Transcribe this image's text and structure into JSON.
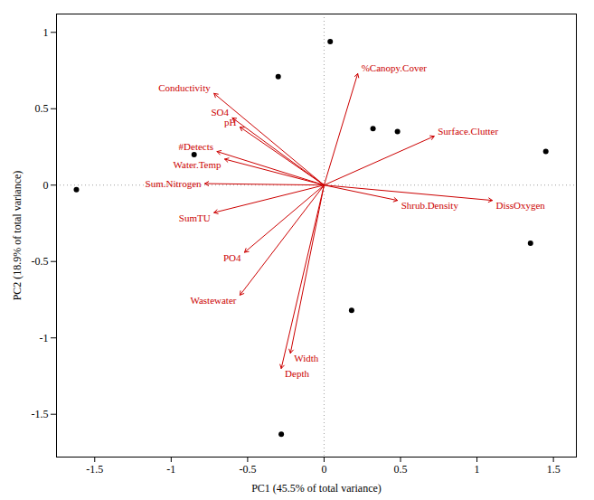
{
  "chart_data": {
    "type": "biplot",
    "xlabel": "PC1 (45.5% of total variance)",
    "ylabel": "PC2 (18.9% of total variance)",
    "xlim": [
      -1.75,
      1.65
    ],
    "ylim": [
      -1.78,
      1.12
    ],
    "xticks": [
      -1.5,
      -1.0,
      -0.5,
      0.0,
      0.5,
      1.0,
      1.5
    ],
    "yticks": [
      -1.5,
      -1.0,
      -0.5,
      0.0,
      0.5,
      1.0
    ],
    "grid": false,
    "series": [
      {
        "type": "scatter",
        "color": "#000000",
        "x": [
          0.04,
          -0.3,
          0.32,
          0.48,
          -0.85,
          -1.62,
          1.45,
          1.35,
          0.18,
          -0.28
        ],
        "y": [
          0.94,
          0.71,
          0.37,
          0.35,
          0.2,
          -0.03,
          0.22,
          -0.38,
          -0.82,
          -1.63
        ]
      },
      {
        "type": "arrow",
        "color": "#cc0000",
        "labels": [
          "%Canopy.Cover",
          "Conductivity",
          "SO4",
          "pH",
          "#Detects",
          "Water.Temp",
          "Sum.Nitrogen",
          "SumTU",
          "PO4",
          "Wastewater",
          "Width",
          "Depth",
          "Surface.Clutter",
          "Shrub.Density",
          "DissOxygen"
        ],
        "x": [
          0.22,
          -0.72,
          -0.6,
          -0.55,
          -0.7,
          -0.65,
          -0.78,
          -0.72,
          -0.52,
          -0.55,
          -0.22,
          -0.28,
          0.72,
          0.48,
          1.1
        ],
        "y": [
          0.73,
          0.6,
          0.44,
          0.38,
          0.22,
          0.17,
          0.01,
          -0.18,
          -0.44,
          -0.72,
          -1.1,
          -1.2,
          0.32,
          -0.1,
          -0.1
        ]
      }
    ]
  }
}
